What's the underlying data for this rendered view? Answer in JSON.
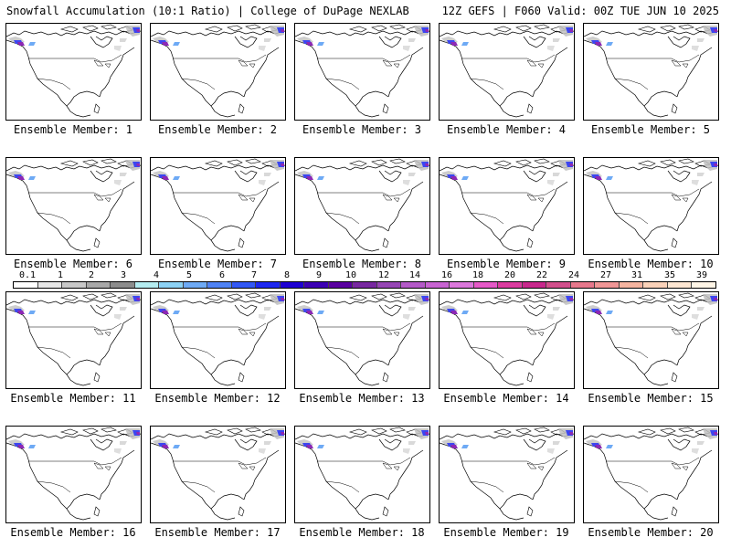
{
  "header": {
    "title": "Snowfall Accumulation (10:1 Ratio) | College of DuPage NEXLAB",
    "run_info": "12Z GEFS | F060 Valid: 00Z TUE JUN 10 2025"
  },
  "panels": [
    {
      "label": "Ensemble Member: 1"
    },
    {
      "label": "Ensemble Member: 2"
    },
    {
      "label": "Ensemble Member: 3"
    },
    {
      "label": "Ensemble Member: 4"
    },
    {
      "label": "Ensemble Member: 5"
    },
    {
      "label": "Ensemble Member: 6"
    },
    {
      "label": "Ensemble Member: 7"
    },
    {
      "label": "Ensemble Member: 8"
    },
    {
      "label": "Ensemble Member: 9"
    },
    {
      "label": "Ensemble Member: 10"
    },
    {
      "label": "Ensemble Member: 11"
    },
    {
      "label": "Ensemble Member: 12"
    },
    {
      "label": "Ensemble Member: 13"
    },
    {
      "label": "Ensemble Member: 14"
    },
    {
      "label": "Ensemble Member: 15"
    },
    {
      "label": "Ensemble Member: 16"
    },
    {
      "label": "Ensemble Member: 17"
    },
    {
      "label": "Ensemble Member: 18"
    },
    {
      "label": "Ensemble Member: 19"
    },
    {
      "label": "Ensemble Member: 20"
    }
  ],
  "colorbar": {
    "ticks": [
      "0.1",
      "1",
      "2",
      "3",
      "4",
      "5",
      "6",
      "7",
      "8",
      "9",
      "10",
      "12",
      "14",
      "16",
      "18",
      "20",
      "22",
      "24",
      "27",
      "31",
      "35",
      "39"
    ],
    "colors": [
      "#ffffff",
      "#e6e6e6",
      "#c8c8c8",
      "#a8a8a8",
      "#8c8c8c",
      "#b4ecf0",
      "#8cd2f5",
      "#6eaaf5",
      "#4f82f5",
      "#3258f5",
      "#1e28f0",
      "#1e00d2",
      "#3c00b4",
      "#5a00a0",
      "#7828a0",
      "#9646b4",
      "#b45ac8",
      "#c864d2",
      "#dc78dc",
      "#e65ac8",
      "#dc3ca0",
      "#c8288c",
      "#d2508c",
      "#e6788c",
      "#f09696",
      "#f5b4a0",
      "#fad2b9",
      "#fde6d2",
      "#fff5e6"
    ]
  },
  "map_colors": {
    "coast": "#000000",
    "snow_light": "#c0c0c0",
    "snow_blue": "#3c46f0",
    "snow_purple": "#8c28b4"
  }
}
